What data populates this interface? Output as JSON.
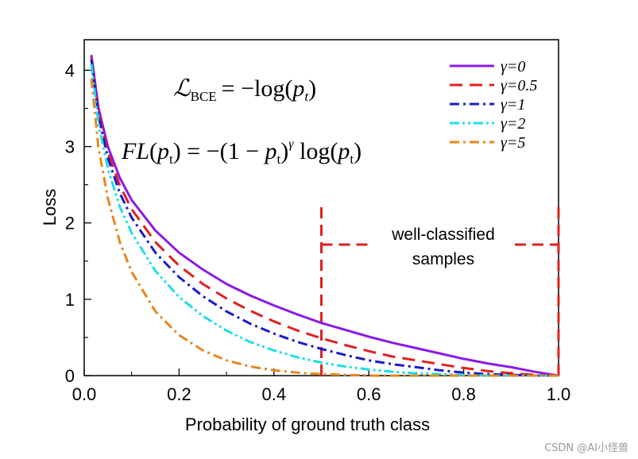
{
  "chart_data": {
    "type": "line",
    "title": "",
    "xlabel": "Probability of ground truth class",
    "ylabel": "Loss",
    "xlim": [
      0.0,
      1.0
    ],
    "ylim": [
      0,
      4.4
    ],
    "x_ticks": [
      "0.0",
      "0.2",
      "0.4",
      "0.6",
      "0.8",
      "1.0"
    ],
    "y_ticks": [
      "0",
      "1",
      "2",
      "3",
      "4"
    ],
    "grid": false,
    "legend_position": "top-right",
    "x": [
      0.015,
      0.03,
      0.05,
      0.075,
      0.1,
      0.15,
      0.2,
      0.25,
      0.3,
      0.35,
      0.4,
      0.45,
      0.5,
      0.55,
      0.6,
      0.65,
      0.7,
      0.75,
      0.8,
      0.85,
      0.9,
      0.95,
      1.0
    ],
    "series": [
      {
        "name": "γ=0",
        "color": "#8b1ae6",
        "dash": "solid",
        "values": [
          4.2,
          3.51,
          3.0,
          2.59,
          2.3,
          1.9,
          1.61,
          1.39,
          1.2,
          1.05,
          0.92,
          0.8,
          0.69,
          0.6,
          0.51,
          0.43,
          0.36,
          0.29,
          0.22,
          0.16,
          0.11,
          0.05,
          0.0
        ]
      },
      {
        "name": "γ=0.5",
        "color": "#e02020",
        "dash": "dashed",
        "values": [
          4.17,
          3.46,
          2.92,
          2.49,
          2.18,
          1.75,
          1.44,
          1.2,
          1.01,
          0.85,
          0.71,
          0.59,
          0.49,
          0.4,
          0.32,
          0.25,
          0.2,
          0.15,
          0.1,
          0.06,
          0.03,
          0.01,
          0.0
        ]
      },
      {
        "name": "γ=1",
        "color": "#1a1acc",
        "dash": "dashdot",
        "values": [
          4.14,
          3.4,
          2.85,
          2.39,
          2.07,
          1.61,
          1.29,
          1.04,
          0.84,
          0.68,
          0.55,
          0.44,
          0.35,
          0.27,
          0.2,
          0.15,
          0.11,
          0.07,
          0.04,
          0.02,
          0.01,
          0.0,
          0.0
        ]
      },
      {
        "name": "γ=2",
        "color": "#1ae0e8",
        "dash": "dashdotdot",
        "values": [
          4.08,
          3.3,
          2.71,
          2.21,
          1.87,
          1.37,
          1.03,
          0.78,
          0.59,
          0.44,
          0.33,
          0.24,
          0.17,
          0.12,
          0.08,
          0.05,
          0.03,
          0.02,
          0.01,
          0.0,
          0.0,
          0.0,
          0.0
        ]
      },
      {
        "name": "γ=5",
        "color": "#e8861a",
        "dash": "dashdot",
        "values": [
          3.89,
          2.99,
          2.32,
          1.75,
          1.36,
          0.84,
          0.53,
          0.33,
          0.2,
          0.12,
          0.07,
          0.04,
          0.02,
          0.01,
          0.0,
          0.0,
          0.0,
          0.0,
          0.0,
          0.0,
          0.0,
          0.0,
          0.0
        ]
      }
    ],
    "annotations": {
      "region": {
        "x_start": 0.5,
        "x_end": 1.0,
        "label_line1": "well-classified",
        "label_line2": "samples",
        "color": "#e02020"
      },
      "formula_bce": {
        "lhs": "ℒ",
        "lhs_sub": "BCE",
        "rhs": "= −log(",
        "var": "p",
        "var_sub": "t",
        "close": ")"
      },
      "formula_fl": {
        "lhs": "FL",
        "open": "(",
        "var": "p",
        "var_sub": "t",
        "mid": ") = −(1 − ",
        "exp": "γ",
        "log": " log(",
        "close": ")"
      }
    }
  },
  "watermark": "CSDN @AI小怪兽"
}
